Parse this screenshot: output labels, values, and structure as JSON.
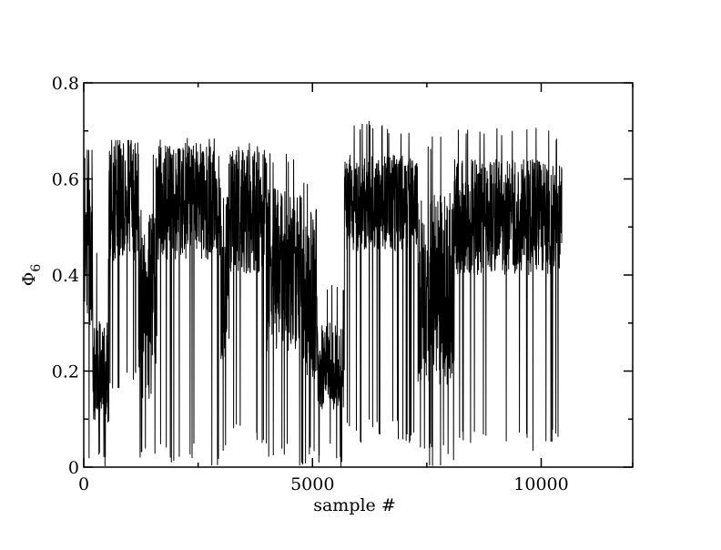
{
  "chart_data": {
    "type": "line",
    "title": "",
    "xlabel": "sample #",
    "ylabel": {
      "base": "Φ",
      "subscript": "6"
    },
    "xlim": [
      0,
      12000
    ],
    "ylim": [
      0,
      0.8
    ],
    "x_ticks": [
      0,
      5000,
      10000
    ],
    "x_tick_labels": [
      "0",
      "5000",
      "10000"
    ],
    "x_minor_ticks": [
      2500,
      7500,
      12000
    ],
    "y_ticks": [
      0,
      0.2,
      0.4,
      0.6,
      0.8
    ],
    "y_tick_labels": [
      "0",
      "0.2",
      "0.4",
      "0.6",
      "0.8"
    ],
    "y_minor_ticks": [
      0.1,
      0.3,
      0.5,
      0.7
    ],
    "grid": false,
    "legend": "none",
    "line_color": "#000000",
    "series": [
      {
        "x_start": 0,
        "x_end": 10450,
        "segments": [
          {
            "x": [
              0,
              200
            ],
            "mean": 0.48,
            "spread": 0.19,
            "min": 0.0,
            "max": 0.66
          },
          {
            "x": [
              200,
              550
            ],
            "mean": 0.2,
            "spread": 0.11,
            "min": 0.0,
            "max": 0.46
          },
          {
            "x": [
              550,
              1200
            ],
            "mean": 0.56,
            "spread": 0.13,
            "min": 0.15,
            "max": 0.68
          },
          {
            "x": [
              1200,
              1600
            ],
            "mean": 0.34,
            "spread": 0.2,
            "min": 0.0,
            "max": 0.66
          },
          {
            "x": [
              1600,
              3000
            ],
            "mean": 0.55,
            "spread": 0.12,
            "min": 0.0,
            "max": 0.69
          },
          {
            "x": [
              3000,
              3200
            ],
            "mean": 0.4,
            "spread": 0.18,
            "min": 0.0,
            "max": 0.65
          },
          {
            "x": [
              3200,
              4000
            ],
            "mean": 0.53,
            "spread": 0.13,
            "min": 0.05,
            "max": 0.68
          },
          {
            "x": [
              4000,
              4800
            ],
            "mean": 0.41,
            "spread": 0.17,
            "min": 0.0,
            "max": 0.66
          },
          {
            "x": [
              4800,
              5100
            ],
            "mean": 0.36,
            "spread": 0.18,
            "min": 0.0,
            "max": 0.6
          },
          {
            "x": [
              5100,
              5700
            ],
            "mean": 0.21,
            "spread": 0.09,
            "min": 0.0,
            "max": 0.38
          },
          {
            "x": [
              5700,
              7300
            ],
            "mean": 0.55,
            "spread": 0.1,
            "min": 0.05,
            "max": 0.72
          },
          {
            "x": [
              7300,
              8100
            ],
            "mean": 0.37,
            "spread": 0.2,
            "min": 0.0,
            "max": 0.69
          },
          {
            "x": [
              8100,
              10450
            ],
            "mean": 0.52,
            "spread": 0.12,
            "min": 0.03,
            "max": 0.71
          }
        ]
      }
    ]
  }
}
